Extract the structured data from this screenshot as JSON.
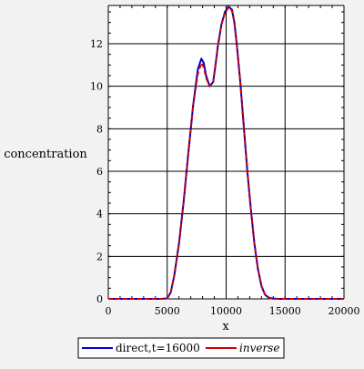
{
  "chart_data": {
    "type": "line",
    "title": "",
    "xlabel": "x",
    "ylabel": "concentration",
    "xlim": [
      0,
      20000
    ],
    "ylim": [
      0,
      13.8
    ],
    "xticks": [
      0,
      5000,
      10000,
      15000,
      20000
    ],
    "yticks": [
      0,
      2,
      4,
      6,
      8,
      10,
      12
    ],
    "grid": true,
    "legend_position": "bottom",
    "series": [
      {
        "name": "direct,t=16000",
        "color": "#0000cc",
        "style": "solid",
        "x": [
          0,
          4500,
          5000,
          5300,
          5600,
          6000,
          6400,
          6800,
          7200,
          7600,
          7900,
          8100,
          8300,
          8600,
          8900,
          9100,
          9300,
          9600,
          9900,
          10200,
          10500,
          10700,
          10900,
          11200,
          11500,
          11800,
          12100,
          12400,
          12700,
          13000,
          13300,
          13600,
          14000,
          14500,
          15000,
          20000
        ],
        "y": [
          0,
          0,
          0.02,
          0.3,
          1.1,
          2.6,
          4.6,
          6.9,
          9.1,
          10.8,
          11.3,
          11.1,
          10.5,
          10.0,
          10.2,
          11.0,
          11.9,
          12.9,
          13.5,
          13.75,
          13.6,
          13.0,
          12.0,
          10.2,
          8.1,
          6.0,
          4.2,
          2.6,
          1.4,
          0.6,
          0.2,
          0.06,
          0.01,
          0,
          0,
          0
        ]
      },
      {
        "name": "inverse",
        "color": "#cc0000",
        "style": "dashed",
        "x": [
          0,
          4500,
          5000,
          5300,
          5600,
          6000,
          6400,
          6800,
          7200,
          7600,
          7900,
          8100,
          8300,
          8600,
          8900,
          9100,
          9300,
          9600,
          9900,
          10200,
          10500,
          10700,
          10900,
          11200,
          11500,
          11800,
          12100,
          12400,
          12700,
          13000,
          13300,
          13600,
          14000,
          14500,
          15000,
          20000
        ],
        "y": [
          0,
          0,
          0.02,
          0.3,
          1.1,
          2.6,
          4.6,
          6.9,
          9.1,
          10.6,
          11.1,
          10.9,
          10.4,
          10.0,
          10.2,
          11.0,
          11.9,
          12.9,
          13.45,
          13.7,
          13.55,
          13.0,
          12.0,
          10.2,
          8.1,
          6.0,
          4.2,
          2.6,
          1.4,
          0.6,
          0.2,
          0.06,
          0.01,
          0,
          0,
          0
        ]
      }
    ]
  },
  "legend": {
    "items": [
      {
        "label": "direct,t=16000",
        "color": "#0000cc",
        "italic": false
      },
      {
        "label": "inverse",
        "color": "#cc0000",
        "italic": true
      }
    ]
  }
}
